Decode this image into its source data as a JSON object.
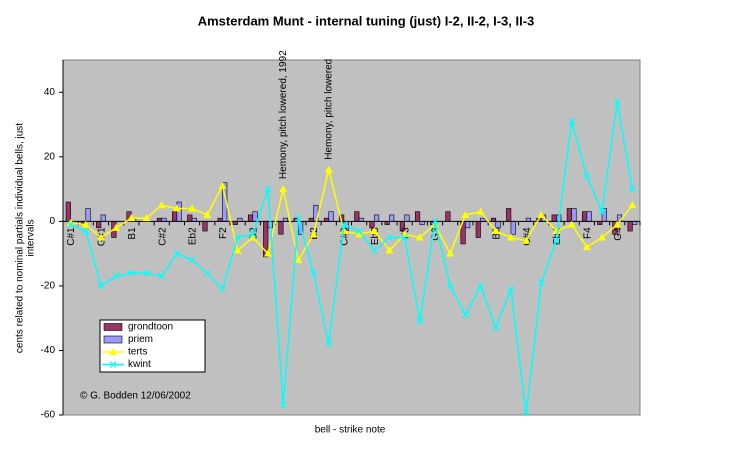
{
  "chart_data": {
    "type": "bar_line",
    "title": "Amsterdam Munt - internal tuning (just) I-2, II-2, I-3, II-3",
    "x_label": "bell - strike note",
    "y_label": [
      "cents related to nominal partials individual bells, just",
      "intervals"
    ],
    "credit": "© G. Bodden 12/06/2002",
    "annotations": [
      "Hemony, pitch lowered, 1992",
      "Hemony, pitch lowered"
    ],
    "categories": [
      "C#1",
      null,
      "G#1",
      null,
      "B1",
      null,
      "C#2",
      null,
      "Eb2",
      null,
      "F2",
      null,
      "G2",
      null,
      null,
      null,
      "B2",
      null,
      "C#3",
      null,
      "Eb3",
      null,
      "F3",
      null,
      "G3",
      null,
      null,
      null,
      "B3",
      null,
      "C#4",
      null,
      "Eb4",
      null,
      "F4",
      null,
      "G4",
      null
    ],
    "series": [
      {
        "name": "grondtoon",
        "kind": "bar",
        "color": "#993366",
        "values": [
          6,
          -1,
          -2,
          -5,
          3,
          0,
          1,
          3,
          2,
          -3,
          1,
          -1,
          2,
          -11,
          -4,
          1,
          1,
          1,
          2,
          3,
          -2,
          -1,
          -3,
          3,
          -1,
          3,
          -7,
          -5,
          1,
          4,
          0,
          1,
          2,
          4,
          3,
          -1,
          -4,
          -3
        ]
      },
      {
        "name": "priem",
        "kind": "bar",
        "color": "#9999ff",
        "values": [
          0,
          4,
          2,
          0,
          1,
          0,
          1,
          6,
          1,
          0,
          12,
          1,
          3,
          -2,
          1,
          -4,
          5,
          3,
          -3,
          1,
          2,
          2,
          2,
          -1,
          0,
          0,
          -2,
          1,
          -2,
          -4,
          1,
          2,
          2,
          4,
          3,
          4,
          2,
          -1
        ]
      },
      {
        "name": "terts",
        "kind": "line",
        "marker": "triangle",
        "color": "#ffff00",
        "values": [
          -0.5,
          -1,
          -5,
          -2,
          1,
          1,
          5,
          4,
          4,
          2,
          11,
          -9,
          -5,
          -10,
          10,
          -12,
          -4,
          16,
          -3,
          -4,
          -3,
          -9,
          -4,
          -5,
          -1,
          -10,
          2,
          3,
          -3,
          -5,
          -6,
          2,
          -3,
          -1,
          -8,
          -5,
          -1,
          5
        ]
      },
      {
        "name": "kwint",
        "kind": "line",
        "marker": "x",
        "color": "#00ffff",
        "values": [
          -1,
          -3,
          -20,
          -17,
          -16,
          -16,
          -17,
          -10,
          -12,
          -16,
          -21,
          -5,
          -4,
          10,
          -57,
          1,
          -16,
          -38,
          -1,
          -3,
          -9,
          -5,
          -5,
          -31,
          0,
          -20,
          -29,
          -20,
          -33,
          -21,
          -60,
          -19,
          -6,
          31,
          14,
          3,
          37,
          10
        ]
      }
    ],
    "ylim": [
      -60,
      50
    ],
    "yticks": [
      -60,
      -40,
      -20,
      0,
      20,
      40
    ],
    "grid": false,
    "plot_color": "#c0c0c0",
    "legend": "lower-left"
  }
}
